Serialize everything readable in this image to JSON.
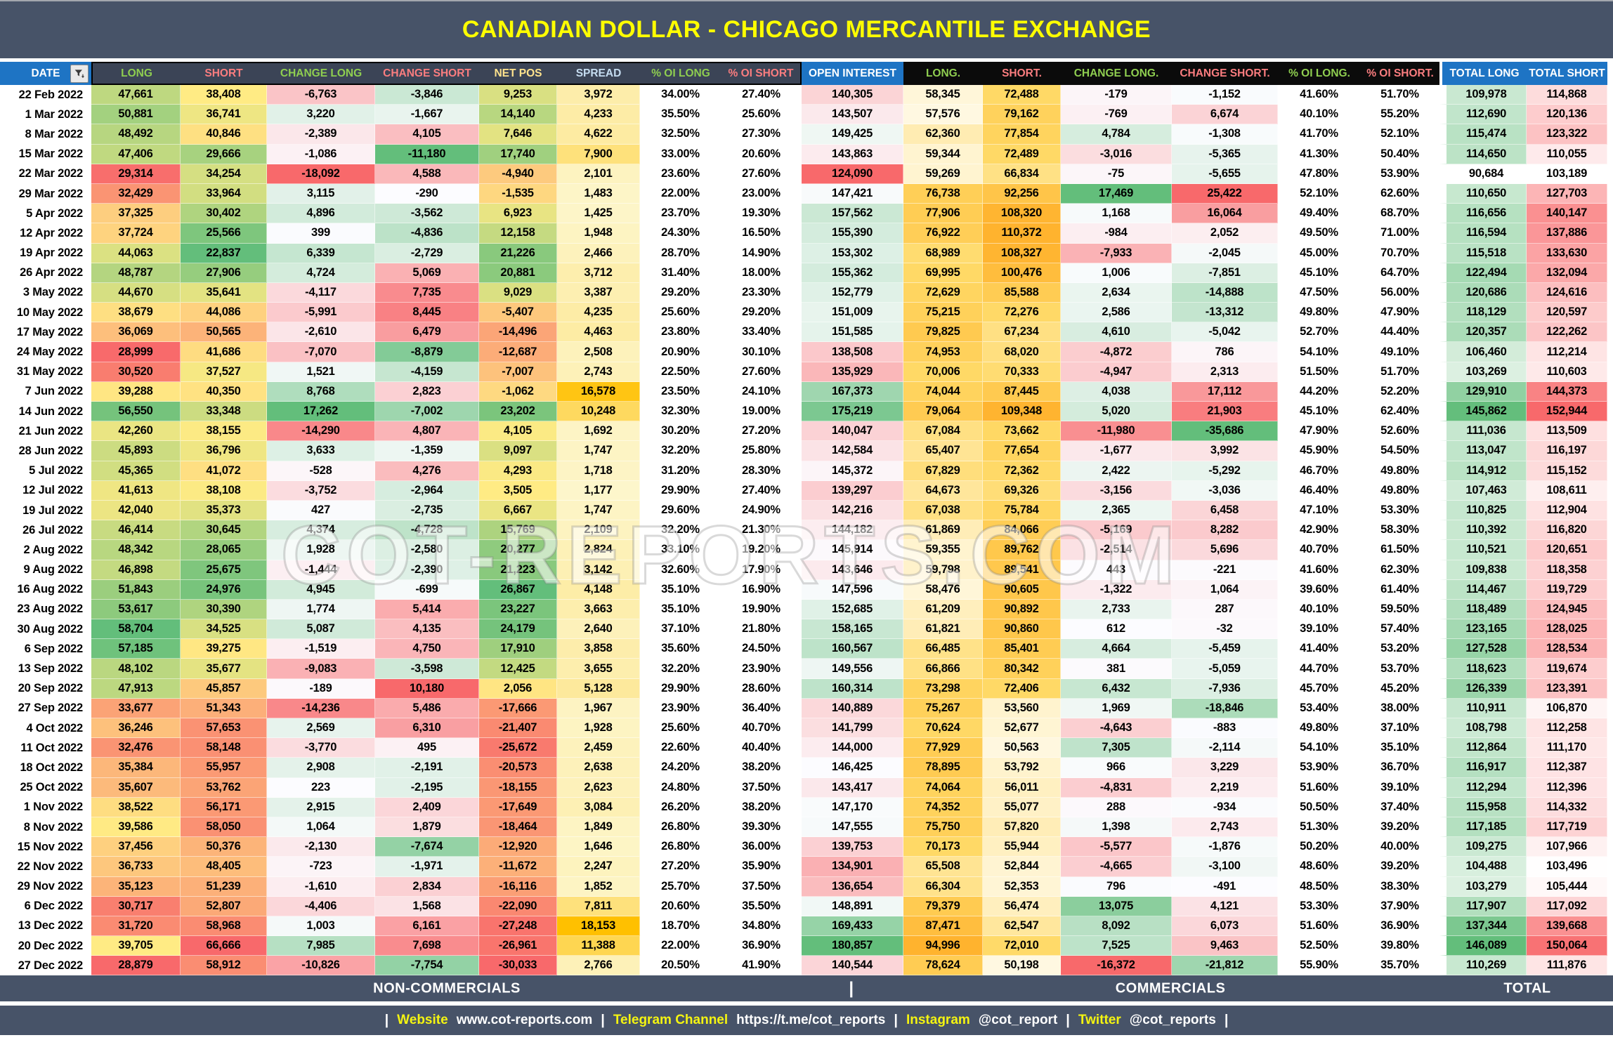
{
  "title": "CANADIAN DOLLAR - CHICAGO MERCANTILE EXCHANGE",
  "watermark": "COT-REPORTS.COM",
  "palette": {
    "title_bar_bg": "#475368",
    "title_text": "#FFFF00",
    "group_header_slate_bg": "#3B4456",
    "group_header_black_bg": "#0B0B0B",
    "blue_header_bg": "#1E74C4",
    "band_bg": "#475368",
    "footer_bg": "#475368",
    "footer_label_yellow": "#F4F411",
    "header_green": "#8FCE50",
    "header_red": "#FB7D7F",
    "header_yellow": "#FFE38D",
    "header_light_blue": "#C5DCF0",
    "scales": {
      "ryg": [
        "#F8696B",
        "#FFEB84",
        "#63BE7B"
      ],
      "gyr": [
        "#63BE7B",
        "#FFEB84",
        "#F8696B"
      ],
      "rwg": [
        "#F8696B",
        "#FCFCFF",
        "#63BE7B"
      ],
      "gwr": [
        "#63BE7B",
        "#FCFCFF",
        "#F8696B"
      ],
      "cream_orange": [
        "#FFF8E1",
        "#FFD966",
        "#FFB32E"
      ],
      "cream_amber": [
        "#FDF6CB",
        "#FFC000"
      ],
      "white_green": [
        "#FFFFFF",
        "#63BE7B"
      ],
      "white_red": [
        "#FFFFFF",
        "#F8696B"
      ]
    }
  },
  "band": {
    "non_commercials": "NON-COMMERCIALS",
    "divider": "|",
    "commercials": "COMMERCIALS",
    "total": "TOTAL"
  },
  "footer": {
    "separator": "|",
    "links": [
      {
        "label": "Website",
        "value": "www.cot-reports.com"
      },
      {
        "label": "Telegram Channel",
        "value": "https://t.me/cot_reports"
      },
      {
        "label": "Instagram",
        "value": "@cot_report"
      },
      {
        "label": "Twitter",
        "value": "@cot_reports"
      }
    ]
  },
  "table": {
    "columns": [
      {
        "key": "date",
        "label": "DATE",
        "header_color": "#FFFFFF",
        "scale": "none"
      },
      {
        "key": "nc_long",
        "label": "LONG",
        "header_color": "#8FCE50",
        "scale": "ryg"
      },
      {
        "key": "nc_short",
        "label": "SHORT",
        "header_color": "#FB7D7F",
        "scale": "gyr"
      },
      {
        "key": "nc_change_long",
        "label": "CHANGE LONG",
        "header_color": "#8FCE50",
        "scale": "rwg"
      },
      {
        "key": "nc_change_short",
        "label": "CHANGE SHORT",
        "header_color": "#FB7D7F",
        "scale": "gwr"
      },
      {
        "key": "net_pos",
        "label": "NET POS",
        "header_color": "#FFE38D",
        "scale": "ryg"
      },
      {
        "key": "spread",
        "label": "SPREAD",
        "header_color": "#C5DCF0",
        "scale": "cream_amber"
      },
      {
        "key": "nc_pct_oi_long",
        "label": "% OI LONG",
        "header_color": "#8FCE50",
        "scale": "none"
      },
      {
        "key": "nc_pct_oi_short",
        "label": "% OI SHORT",
        "header_color": "#FB7D7F",
        "scale": "none"
      },
      {
        "key": "open_interest",
        "label": "OPEN INTEREST",
        "header_color": "#FFFFFF",
        "scale": "rwg"
      },
      {
        "key": "c_long",
        "label": "LONG.",
        "header_color": "#8FCE50",
        "scale": "cream_orange"
      },
      {
        "key": "c_short",
        "label": "SHORT.",
        "header_color": "#FB7D7F",
        "scale": "cream_orange"
      },
      {
        "key": "c_change_long",
        "label": "CHANGE LONG.",
        "header_color": "#8FCE50",
        "scale": "rwg"
      },
      {
        "key": "c_change_short",
        "label": "CHANGE SHORT.",
        "header_color": "#FB7D7F",
        "scale": "gwr"
      },
      {
        "key": "c_pct_oi_long",
        "label": "% OI LONG.",
        "header_color": "#8FCE50",
        "scale": "none"
      },
      {
        "key": "c_pct_oi_short",
        "label": "% OI SHORT.",
        "header_color": "#FB7D7F",
        "scale": "none"
      },
      {
        "key": "total_long",
        "label": "TOTAL LONG",
        "header_color": "#FFFFFF",
        "scale": "white_green"
      },
      {
        "key": "total_short",
        "label": "TOTAL SHORT",
        "header_color": "#FFFFFF",
        "scale": "white_red"
      }
    ],
    "rows": [
      [
        "22 Feb 2022",
        "47,661",
        "38,408",
        "-6,763",
        "-3,846",
        "9,253",
        "3,972",
        "34.00%",
        "27.40%",
        "140,305",
        "58,345",
        "72,488",
        "-179",
        "-1,152",
        "41.60%",
        "51.70%",
        "109,978",
        "114,868"
      ],
      [
        "1 Mar 2022",
        "50,881",
        "36,741",
        "3,220",
        "-1,667",
        "14,140",
        "4,233",
        "35.50%",
        "25.60%",
        "143,507",
        "57,576",
        "79,162",
        "-769",
        "6,674",
        "40.10%",
        "55.20%",
        "112,690",
        "120,136"
      ],
      [
        "8 Mar 2022",
        "48,492",
        "40,846",
        "-2,389",
        "4,105",
        "7,646",
        "4,622",
        "32.50%",
        "27.30%",
        "149,425",
        "62,360",
        "77,854",
        "4,784",
        "-1,308",
        "41.70%",
        "52.10%",
        "115,474",
        "123,322"
      ],
      [
        "15 Mar 2022",
        "47,406",
        "29,666",
        "-1,086",
        "-11,180",
        "17,740",
        "7,900",
        "33.00%",
        "20.60%",
        "143,863",
        "59,344",
        "72,489",
        "-3,016",
        "-5,365",
        "41.30%",
        "50.40%",
        "114,650",
        "110,055"
      ],
      [
        "22 Mar 2022",
        "29,314",
        "34,254",
        "-18,092",
        "4,588",
        "-4,940",
        "2,101",
        "23.60%",
        "27.60%",
        "124,090",
        "59,269",
        "66,834",
        "-75",
        "-5,655",
        "47.80%",
        "53.90%",
        "90,684",
        "103,189"
      ],
      [
        "29 Mar 2022",
        "32,429",
        "33,964",
        "3,115",
        "-290",
        "-1,535",
        "1,483",
        "22.00%",
        "23.00%",
        "147,421",
        "76,738",
        "92,256",
        "17,469",
        "25,422",
        "52.10%",
        "62.60%",
        "110,650",
        "127,703"
      ],
      [
        "5 Apr 2022",
        "37,325",
        "30,402",
        "4,896",
        "-3,562",
        "6,923",
        "1,425",
        "23.70%",
        "19.30%",
        "157,562",
        "77,906",
        "108,320",
        "1,168",
        "16,064",
        "49.40%",
        "68.70%",
        "116,656",
        "140,147"
      ],
      [
        "12 Apr 2022",
        "37,724",
        "25,566",
        "399",
        "-4,836",
        "12,158",
        "1,948",
        "24.30%",
        "16.50%",
        "155,390",
        "76,922",
        "110,372",
        "-984",
        "2,052",
        "49.50%",
        "71.00%",
        "116,594",
        "137,886"
      ],
      [
        "19 Apr 2022",
        "44,063",
        "22,837",
        "6,339",
        "-2,729",
        "21,226",
        "2,466",
        "28.70%",
        "14.90%",
        "153,302",
        "68,989",
        "108,327",
        "-7,933",
        "-2,045",
        "45.00%",
        "70.70%",
        "115,518",
        "133,630"
      ],
      [
        "26 Apr 2022",
        "48,787",
        "27,906",
        "4,724",
        "5,069",
        "20,881",
        "3,712",
        "31.40%",
        "18.00%",
        "155,362",
        "69,995",
        "100,476",
        "1,006",
        "-7,851",
        "45.10%",
        "64.70%",
        "122,494",
        "132,094"
      ],
      [
        "3 May 2022",
        "44,670",
        "35,641",
        "-4,117",
        "7,735",
        "9,029",
        "3,387",
        "29.20%",
        "23.30%",
        "152,779",
        "72,629",
        "85,588",
        "2,634",
        "-14,888",
        "47.50%",
        "56.00%",
        "120,686",
        "124,616"
      ],
      [
        "10 May 2022",
        "38,679",
        "44,086",
        "-5,991",
        "8,445",
        "-5,407",
        "4,235",
        "25.60%",
        "29.20%",
        "151,009",
        "75,215",
        "72,276",
        "2,586",
        "-13,312",
        "49.80%",
        "47.90%",
        "118,129",
        "120,597"
      ],
      [
        "17 May 2022",
        "36,069",
        "50,565",
        "-2,610",
        "6,479",
        "-14,496",
        "4,463",
        "23.80%",
        "33.40%",
        "151,585",
        "79,825",
        "67,234",
        "4,610",
        "-5,042",
        "52.70%",
        "44.40%",
        "120,357",
        "122,262"
      ],
      [
        "24 May 2022",
        "28,999",
        "41,686",
        "-7,070",
        "-8,879",
        "-12,687",
        "2,508",
        "20.90%",
        "30.10%",
        "138,508",
        "74,953",
        "68,020",
        "-4,872",
        "786",
        "54.10%",
        "49.10%",
        "106,460",
        "112,214"
      ],
      [
        "31 May 2022",
        "30,520",
        "37,527",
        "1,521",
        "-4,159",
        "-7,007",
        "2,743",
        "22.50%",
        "27.60%",
        "135,929",
        "70,006",
        "70,333",
        "-4,947",
        "2,313",
        "51.50%",
        "51.70%",
        "103,269",
        "110,603"
      ],
      [
        "7 Jun 2022",
        "39,288",
        "40,350",
        "8,768",
        "2,823",
        "-1,062",
        "16,578",
        "23.50%",
        "24.10%",
        "167,373",
        "74,044",
        "87,445",
        "4,038",
        "17,112",
        "44.20%",
        "52.20%",
        "129,910",
        "144,373"
      ],
      [
        "14 Jun 2022",
        "56,550",
        "33,348",
        "17,262",
        "-7,002",
        "23,202",
        "10,248",
        "32.30%",
        "19.00%",
        "175,219",
        "79,064",
        "109,348",
        "5,020",
        "21,903",
        "45.10%",
        "62.40%",
        "145,862",
        "152,944"
      ],
      [
        "21 Jun 2022",
        "42,260",
        "38,155",
        "-14,290",
        "4,807",
        "4,105",
        "1,692",
        "30.20%",
        "27.20%",
        "140,047",
        "67,084",
        "73,662",
        "-11,980",
        "-35,686",
        "47.90%",
        "52.60%",
        "111,036",
        "113,509"
      ],
      [
        "28 Jun 2022",
        "45,893",
        "36,796",
        "3,633",
        "-1,359",
        "9,097",
        "1,747",
        "32.20%",
        "25.80%",
        "142,584",
        "65,407",
        "77,654",
        "-1,677",
        "3,992",
        "45.90%",
        "54.50%",
        "113,047",
        "116,197"
      ],
      [
        "5 Jul 2022",
        "45,365",
        "41,072",
        "-528",
        "4,276",
        "4,293",
        "1,718",
        "31.20%",
        "28.30%",
        "145,372",
        "67,829",
        "72,362",
        "2,422",
        "-5,292",
        "46.70%",
        "49.80%",
        "114,912",
        "115,152"
      ],
      [
        "12 Jul 2022",
        "41,613",
        "38,108",
        "-3,752",
        "-2,964",
        "3,505",
        "1,177",
        "29.90%",
        "27.40%",
        "139,297",
        "64,673",
        "69,326",
        "-3,156",
        "-3,036",
        "46.40%",
        "49.80%",
        "107,463",
        "108,611"
      ],
      [
        "19 Jul 2022",
        "42,040",
        "35,373",
        "427",
        "-2,735",
        "6,667",
        "1,747",
        "29.60%",
        "24.90%",
        "142,216",
        "67,038",
        "75,784",
        "2,365",
        "6,458",
        "47.10%",
        "53.30%",
        "110,825",
        "112,904"
      ],
      [
        "26 Jul 2022",
        "46,414",
        "30,645",
        "4,374",
        "-4,728",
        "15,769",
        "2,109",
        "32.20%",
        "21.30%",
        "144,182",
        "61,869",
        "84,066",
        "-5,169",
        "8,282",
        "42.90%",
        "58.30%",
        "110,392",
        "116,820"
      ],
      [
        "2 Aug 2022",
        "48,342",
        "28,065",
        "1,928",
        "-2,580",
        "20,277",
        "2,824",
        "33.10%",
        "19.20%",
        "145,914",
        "59,355",
        "89,762",
        "-2,514",
        "5,696",
        "40.70%",
        "61.50%",
        "110,521",
        "120,651"
      ],
      [
        "9 Aug 2022",
        "46,898",
        "25,675",
        "-1,444",
        "-2,390",
        "21,223",
        "3,142",
        "32.60%",
        "17.90%",
        "143,646",
        "59,798",
        "89,541",
        "443",
        "-221",
        "41.60%",
        "62.30%",
        "109,838",
        "118,358"
      ],
      [
        "16 Aug 2022",
        "51,843",
        "24,976",
        "4,945",
        "-699",
        "26,867",
        "4,148",
        "35.10%",
        "16.90%",
        "147,596",
        "58,476",
        "90,605",
        "-1,322",
        "1,064",
        "39.60%",
        "61.40%",
        "114,467",
        "119,729"
      ],
      [
        "23 Aug 2022",
        "53,617",
        "30,390",
        "1,774",
        "5,414",
        "23,227",
        "3,663",
        "35.10%",
        "19.90%",
        "152,685",
        "61,209",
        "90,892",
        "2,733",
        "287",
        "40.10%",
        "59.50%",
        "118,489",
        "124,945"
      ],
      [
        "30 Aug 2022",
        "58,704",
        "34,525",
        "5,087",
        "4,135",
        "24,179",
        "2,640",
        "37.10%",
        "21.80%",
        "158,165",
        "61,821",
        "90,860",
        "612",
        "-32",
        "39.10%",
        "57.40%",
        "123,165",
        "128,025"
      ],
      [
        "6 Sep 2022",
        "57,185",
        "39,275",
        "-1,519",
        "4,750",
        "17,910",
        "3,858",
        "35.60%",
        "24.50%",
        "160,567",
        "66,485",
        "85,401",
        "4,664",
        "-5,459",
        "41.40%",
        "53.20%",
        "127,528",
        "128,534"
      ],
      [
        "13 Sep 2022",
        "48,102",
        "35,677",
        "-9,083",
        "-3,598",
        "12,425",
        "3,655",
        "32.20%",
        "23.90%",
        "149,556",
        "66,866",
        "80,342",
        "381",
        "-5,059",
        "44.70%",
        "53.70%",
        "118,623",
        "119,674"
      ],
      [
        "20 Sep 2022",
        "47,913",
        "45,857",
        "-189",
        "10,180",
        "2,056",
        "5,128",
        "29.90%",
        "28.60%",
        "160,314",
        "73,298",
        "72,406",
        "6,432",
        "-7,936",
        "45.70%",
        "45.20%",
        "126,339",
        "123,391"
      ],
      [
        "27 Sep 2022",
        "33,677",
        "51,343",
        "-14,236",
        "5,486",
        "-17,666",
        "1,967",
        "23.90%",
        "36.40%",
        "140,889",
        "75,267",
        "53,560",
        "1,969",
        "-18,846",
        "53.40%",
        "38.00%",
        "110,911",
        "106,870"
      ],
      [
        "4 Oct 2022",
        "36,246",
        "57,653",
        "2,569",
        "6,310",
        "-21,407",
        "1,928",
        "25.60%",
        "40.70%",
        "141,799",
        "70,624",
        "52,677",
        "-4,643",
        "-883",
        "49.80%",
        "37.10%",
        "108,798",
        "112,258"
      ],
      [
        "11 Oct 2022",
        "32,476",
        "58,148",
        "-3,770",
        "495",
        "-25,672",
        "2,459",
        "22.60%",
        "40.40%",
        "144,000",
        "77,929",
        "50,563",
        "7,305",
        "-2,114",
        "54.10%",
        "35.10%",
        "112,864",
        "111,170"
      ],
      [
        "18 Oct 2022",
        "35,384",
        "55,957",
        "2,908",
        "-2,191",
        "-20,573",
        "2,638",
        "24.20%",
        "38.20%",
        "146,425",
        "78,895",
        "53,792",
        "966",
        "3,229",
        "53.90%",
        "36.70%",
        "116,917",
        "112,387"
      ],
      [
        "25 Oct 2022",
        "35,607",
        "53,762",
        "223",
        "-2,195",
        "-18,155",
        "2,623",
        "24.80%",
        "37.50%",
        "143,417",
        "74,064",
        "56,011",
        "-4,831",
        "2,219",
        "51.60%",
        "39.10%",
        "112,294",
        "112,396"
      ],
      [
        "1 Nov 2022",
        "38,522",
        "56,171",
        "2,915",
        "2,409",
        "-17,649",
        "3,084",
        "26.20%",
        "38.20%",
        "147,170",
        "74,352",
        "55,077",
        "288",
        "-934",
        "50.50%",
        "37.40%",
        "115,958",
        "114,332"
      ],
      [
        "8 Nov 2022",
        "39,586",
        "58,050",
        "1,064",
        "1,879",
        "-18,464",
        "1,849",
        "26.80%",
        "39.30%",
        "147,555",
        "75,750",
        "57,820",
        "1,398",
        "2,743",
        "51.30%",
        "39.20%",
        "117,185",
        "117,719"
      ],
      [
        "15 Nov 2022",
        "37,456",
        "50,376",
        "-2,130",
        "-7,674",
        "-12,920",
        "1,646",
        "26.80%",
        "36.00%",
        "139,753",
        "70,173",
        "55,944",
        "-5,577",
        "-1,876",
        "50.20%",
        "40.00%",
        "109,275",
        "107,966"
      ],
      [
        "22 Nov 2022",
        "36,733",
        "48,405",
        "-723",
        "-1,971",
        "-11,672",
        "2,247",
        "27.20%",
        "35.90%",
        "134,901",
        "65,508",
        "52,844",
        "-4,665",
        "-3,100",
        "48.60%",
        "39.20%",
        "104,488",
        "103,496"
      ],
      [
        "29 Nov 2022",
        "35,123",
        "51,239",
        "-1,610",
        "2,834",
        "-16,116",
        "1,852",
        "25.70%",
        "37.50%",
        "136,654",
        "66,304",
        "52,353",
        "796",
        "-491",
        "48.50%",
        "38.30%",
        "103,279",
        "105,444"
      ],
      [
        "6 Dec 2022",
        "30,717",
        "52,807",
        "-4,406",
        "1,568",
        "-22,090",
        "7,811",
        "20.60%",
        "35.50%",
        "148,891",
        "79,379",
        "56,474",
        "13,075",
        "4,121",
        "53.30%",
        "37.90%",
        "117,907",
        "117,092"
      ],
      [
        "13 Dec 2022",
        "31,720",
        "58,968",
        "1,003",
        "6,161",
        "-27,248",
        "18,153",
        "18.70%",
        "34.80%",
        "169,433",
        "87,471",
        "62,547",
        "8,092",
        "6,073",
        "51.60%",
        "36.90%",
        "137,344",
        "139,668"
      ],
      [
        "20 Dec 2022",
        "39,705",
        "66,666",
        "7,985",
        "7,698",
        "-26,961",
        "11,388",
        "22.00%",
        "36.90%",
        "180,857",
        "94,996",
        "72,010",
        "7,525",
        "9,463",
        "52.50%",
        "39.80%",
        "146,089",
        "150,064"
      ],
      [
        "27 Dec 2022",
        "28,879",
        "58,912",
        "-10,826",
        "-7,754",
        "-30,033",
        "2,766",
        "20.50%",
        "41.90%",
        "140,544",
        "78,624",
        "50,198",
        "-16,372",
        "-21,812",
        "55.90%",
        "35.70%",
        "110,269",
        "111,876"
      ]
    ]
  }
}
